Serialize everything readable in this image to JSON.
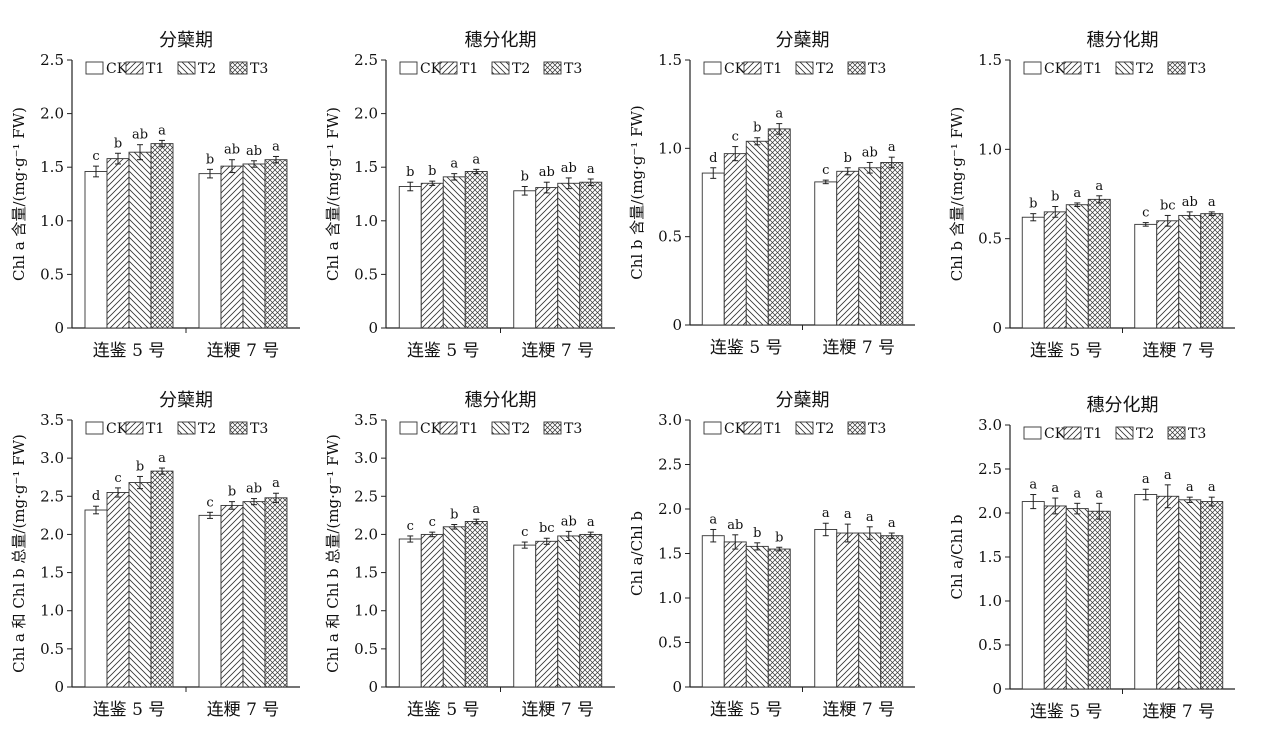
{
  "legend": [
    "CK",
    "T1",
    "T2",
    "T3"
  ],
  "chart_data": [
    {
      "type": "bar",
      "title": "分蘖期",
      "ylabel": "Chl a 含量/(mg·g⁻¹ FW)",
      "ylim": [
        0,
        2.5
      ],
      "yticks": [
        "0",
        "0.5",
        "1.0",
        "1.5",
        "2.0",
        "2.5"
      ],
      "categories": [
        "连鉴 5 号",
        "连粳 7 号"
      ],
      "series": [
        {
          "name": "CK",
          "values": [
            1.46,
            1.44
          ],
          "errors": [
            0.05,
            0.04
          ],
          "labels": [
            "c",
            "b"
          ]
        },
        {
          "name": "T1",
          "values": [
            1.58,
            1.51
          ],
          "errors": [
            0.05,
            0.06
          ],
          "labels": [
            "b",
            "ab"
          ]
        },
        {
          "name": "T2",
          "values": [
            1.64,
            1.53
          ],
          "errors": [
            0.07,
            0.03
          ],
          "labels": [
            "ab",
            "ab"
          ]
        },
        {
          "name": "T3",
          "values": [
            1.72,
            1.57
          ],
          "errors": [
            0.03,
            0.03
          ],
          "labels": [
            "a",
            "a"
          ]
        }
      ]
    },
    {
      "type": "bar",
      "title": "穗分化期",
      "ylabel": "Chl a 含量/(mg·g⁻¹ FW)",
      "ylim": [
        0,
        2.5
      ],
      "yticks": [
        "0",
        "0.5",
        "1.0",
        "1.5",
        "2.0",
        "2.5"
      ],
      "categories": [
        "连鉴 5 号",
        "连粳 7 号"
      ],
      "series": [
        {
          "name": "CK",
          "values": [
            1.32,
            1.28
          ],
          "errors": [
            0.04,
            0.04
          ],
          "labels": [
            "b",
            "b"
          ]
        },
        {
          "name": "T1",
          "values": [
            1.35,
            1.31
          ],
          "errors": [
            0.02,
            0.05
          ],
          "labels": [
            "b",
            "ab"
          ]
        },
        {
          "name": "T2",
          "values": [
            1.41,
            1.35
          ],
          "errors": [
            0.03,
            0.05
          ],
          "labels": [
            "a",
            "ab"
          ]
        },
        {
          "name": "T3",
          "values": [
            1.46,
            1.36
          ],
          "errors": [
            0.02,
            0.03
          ],
          "labels": [
            "a",
            "a"
          ]
        }
      ]
    },
    {
      "type": "bar",
      "title": "分蘖期",
      "ylabel": "Chl b 含量/(mg·g⁻¹ FW)",
      "ylim": [
        0,
        1.5
      ],
      "yticks": [
        "0",
        "0.5",
        "1.0",
        "1.5"
      ],
      "categories": [
        "连鉴 5 号",
        "连粳 7 号"
      ],
      "series": [
        {
          "name": "CK",
          "values": [
            0.86,
            0.81
          ],
          "errors": [
            0.03,
            0.01
          ],
          "labels": [
            "d",
            "c"
          ]
        },
        {
          "name": "T1",
          "values": [
            0.97,
            0.87
          ],
          "errors": [
            0.04,
            0.02
          ],
          "labels": [
            "c",
            "b"
          ]
        },
        {
          "name": "T2",
          "values": [
            1.04,
            0.89
          ],
          "errors": [
            0.02,
            0.03
          ],
          "labels": [
            "b",
            "ab"
          ]
        },
        {
          "name": "T3",
          "values": [
            1.11,
            0.92
          ],
          "errors": [
            0.03,
            0.03
          ],
          "labels": [
            "a",
            "a"
          ]
        }
      ]
    },
    {
      "type": "bar",
      "title": "穗分化期",
      "ylabel": "Chl b 含量/(mg·g⁻¹ FW)",
      "ylim": [
        0,
        1.5
      ],
      "yticks": [
        "0",
        "0.5",
        "1.0",
        "1.5"
      ],
      "categories": [
        "连鉴 5 号",
        "连粳 7 号"
      ],
      "series": [
        {
          "name": "CK",
          "values": [
            0.62,
            0.58
          ],
          "errors": [
            0.02,
            0.01
          ],
          "labels": [
            "b",
            "c"
          ]
        },
        {
          "name": "T1",
          "values": [
            0.65,
            0.6
          ],
          "errors": [
            0.03,
            0.03
          ],
          "labels": [
            "b",
            "bc"
          ]
        },
        {
          "name": "T2",
          "values": [
            0.69,
            0.63
          ],
          "errors": [
            0.01,
            0.02
          ],
          "labels": [
            "a",
            "ab"
          ]
        },
        {
          "name": "T3",
          "values": [
            0.72,
            0.64
          ],
          "errors": [
            0.02,
            0.01
          ],
          "labels": [
            "a",
            "a"
          ]
        }
      ]
    },
    {
      "type": "bar",
      "title": "分蘖期",
      "ylabel": "Chl a 和 Chl b 总量/(mg·g⁻¹ FW)",
      "ylim": [
        0,
        3.5
      ],
      "yticks": [
        "0",
        "0.5",
        "1.0",
        "1.5",
        "2.0",
        "2.5",
        "3.0",
        "3.5"
      ],
      "categories": [
        "连鉴 5 号",
        "连粳 7 号"
      ],
      "series": [
        {
          "name": "CK",
          "values": [
            2.32,
            2.25
          ],
          "errors": [
            0.05,
            0.04
          ],
          "labels": [
            "d",
            "c"
          ]
        },
        {
          "name": "T1",
          "values": [
            2.55,
            2.38
          ],
          "errors": [
            0.06,
            0.05
          ],
          "labels": [
            "c",
            "b"
          ]
        },
        {
          "name": "T2",
          "values": [
            2.68,
            2.43
          ],
          "errors": [
            0.08,
            0.04
          ],
          "labels": [
            "b",
            "ab"
          ]
        },
        {
          "name": "T3",
          "values": [
            2.83,
            2.48
          ],
          "errors": [
            0.04,
            0.06
          ],
          "labels": [
            "a",
            "a"
          ]
        }
      ]
    },
    {
      "type": "bar",
      "title": "穗分化期",
      "ylabel": "Chl a 和 Chl b 总量/(mg·g⁻¹ FW)",
      "ylim": [
        0,
        3.5
      ],
      "yticks": [
        "0",
        "0.5",
        "1.0",
        "1.5",
        "2.0",
        "2.5",
        "3.0",
        "3.5"
      ],
      "categories": [
        "连鉴 5 号",
        "连粳 7 号"
      ],
      "series": [
        {
          "name": "CK",
          "values": [
            1.94,
            1.86
          ],
          "errors": [
            0.04,
            0.04
          ],
          "labels": [
            "c",
            "c"
          ]
        },
        {
          "name": "T1",
          "values": [
            2.0,
            1.91
          ],
          "errors": [
            0.03,
            0.04
          ],
          "labels": [
            "c",
            "bc"
          ]
        },
        {
          "name": "T2",
          "values": [
            2.1,
            1.98
          ],
          "errors": [
            0.03,
            0.06
          ],
          "labels": [
            "b",
            "ab"
          ]
        },
        {
          "name": "T3",
          "values": [
            2.17,
            2.0
          ],
          "errors": [
            0.03,
            0.03
          ],
          "labels": [
            "a",
            "a"
          ]
        }
      ]
    },
    {
      "type": "bar",
      "title": "分蘖期",
      "ylabel": "Chl a/Chl b",
      "ylim": [
        0,
        3.0
      ],
      "yticks": [
        "0",
        "0.5",
        "1.0",
        "1.5",
        "2.0",
        "2.5",
        "3.0"
      ],
      "categories": [
        "连鉴 5 号",
        "连粳 7 号"
      ],
      "series": [
        {
          "name": "CK",
          "values": [
            1.7,
            1.77
          ],
          "errors": [
            0.07,
            0.07
          ],
          "labels": [
            "a",
            "a"
          ]
        },
        {
          "name": "T1",
          "values": [
            1.63,
            1.73
          ],
          "errors": [
            0.08,
            0.1
          ],
          "labels": [
            "ab",
            "a"
          ]
        },
        {
          "name": "T2",
          "values": [
            1.58,
            1.73
          ],
          "errors": [
            0.04,
            0.07
          ],
          "labels": [
            "b",
            "a"
          ]
        },
        {
          "name": "T3",
          "values": [
            1.55,
            1.7
          ],
          "errors": [
            0.02,
            0.03
          ],
          "labels": [
            "b",
            "a"
          ]
        }
      ]
    },
    {
      "type": "bar",
      "title": "穗分化期",
      "ylabel": "Chl a/Chl b",
      "ylim": [
        0,
        3.0
      ],
      "yticks": [
        "0",
        "0.5",
        "1.0",
        "1.5",
        "2.0",
        "2.5",
        "3.0"
      ],
      "categories": [
        "连鉴 5 号",
        "连粳 7 号"
      ],
      "series": [
        {
          "name": "CK",
          "values": [
            2.13,
            2.21
          ],
          "errors": [
            0.08,
            0.06
          ],
          "labels": [
            "a",
            "a"
          ]
        },
        {
          "name": "T1",
          "values": [
            2.08,
            2.19
          ],
          "errors": [
            0.09,
            0.13
          ],
          "labels": [
            "a",
            "a"
          ]
        },
        {
          "name": "T2",
          "values": [
            2.05,
            2.15
          ],
          "errors": [
            0.06,
            0.03
          ],
          "labels": [
            "a",
            "a"
          ]
        },
        {
          "name": "T3",
          "values": [
            2.02,
            2.13
          ],
          "errors": [
            0.09,
            0.05
          ],
          "labels": [
            "a",
            "a"
          ]
        }
      ]
    }
  ]
}
